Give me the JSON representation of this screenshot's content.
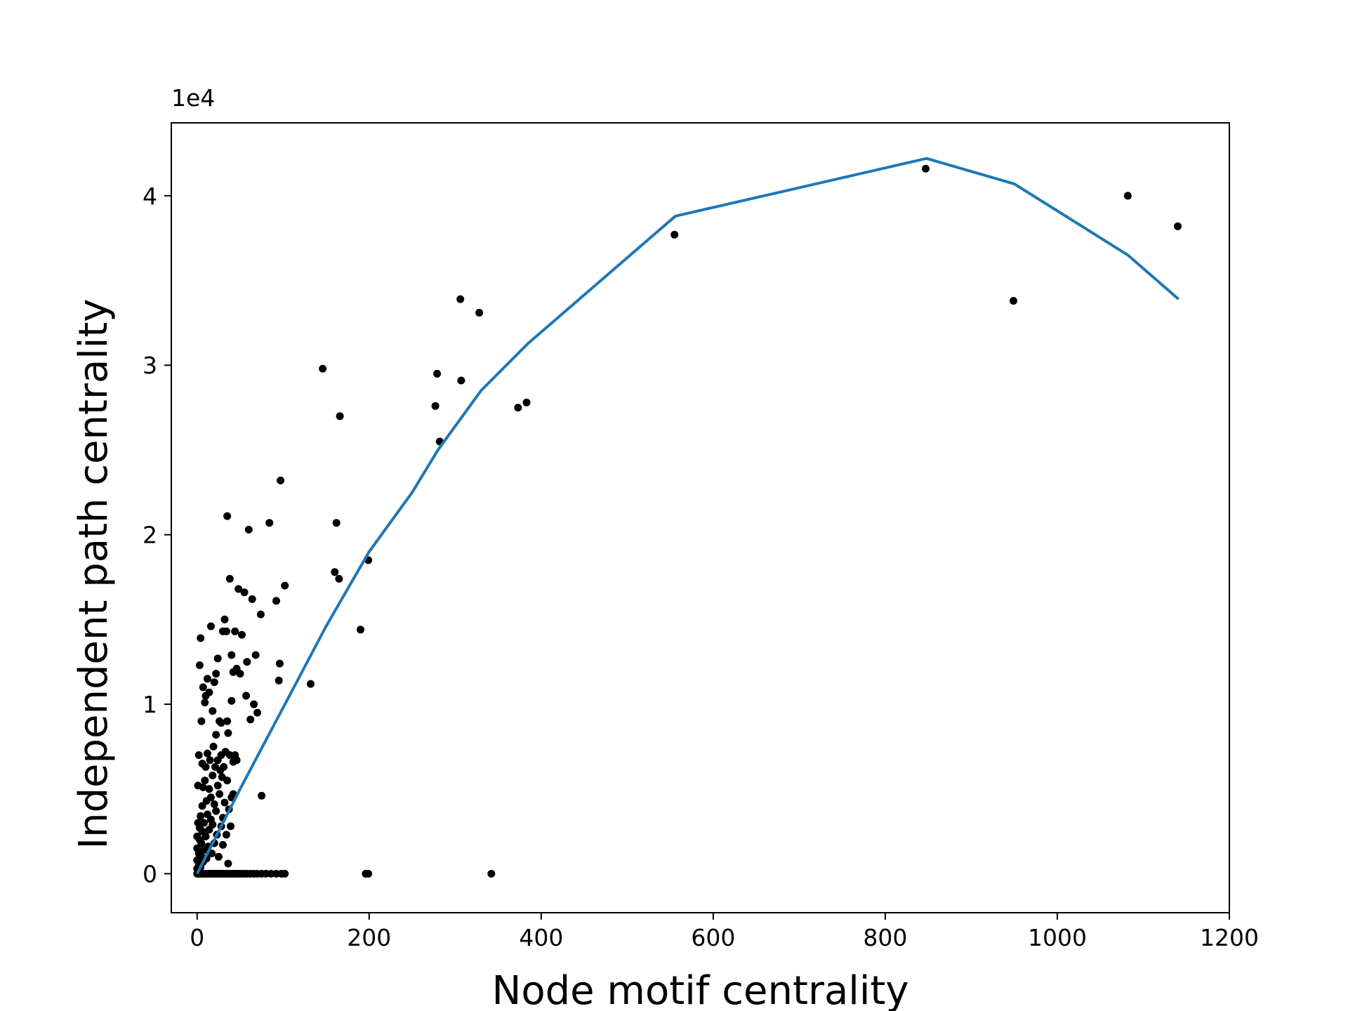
{
  "chart_data": {
    "type": "scatter",
    "title": "",
    "xlabel": "Node motif centrality",
    "ylabel": "Independent path centrality",
    "y_offset_label": "1e4",
    "y_scale_factor": 10000,
    "xlim": [
      -30,
      1200
    ],
    "ylim": [
      -2300,
      44300
    ],
    "x_ticks": [
      0,
      200,
      400,
      600,
      800,
      1000,
      1200
    ],
    "x_tick_labels": [
      "0",
      "200",
      "400",
      "600",
      "800",
      "1000",
      "1200"
    ],
    "y_ticks": [
      0,
      10000,
      20000,
      30000,
      40000
    ],
    "y_tick_labels": [
      "0",
      "1",
      "2",
      "3",
      "4"
    ],
    "grid": false,
    "colors": {
      "points": "#000000",
      "line": "#1f77b4"
    },
    "series": [
      {
        "kind": "scatter",
        "points": [
          [
            0,
            0
          ],
          [
            1,
            0
          ],
          [
            2,
            0
          ],
          [
            3,
            0
          ],
          [
            4,
            0
          ],
          [
            5,
            0
          ],
          [
            6,
            0
          ],
          [
            7,
            0
          ],
          [
            8,
            0
          ],
          [
            9,
            0
          ],
          [
            10,
            0
          ],
          [
            12,
            0
          ],
          [
            14,
            0
          ],
          [
            16,
            0
          ],
          [
            18,
            0
          ],
          [
            20,
            0
          ],
          [
            22,
            0
          ],
          [
            24,
            0
          ],
          [
            26,
            0
          ],
          [
            28,
            0
          ],
          [
            30,
            0
          ],
          [
            32,
            0
          ],
          [
            34,
            0
          ],
          [
            36,
            0
          ],
          [
            38,
            0
          ],
          [
            40,
            0
          ],
          [
            42,
            0
          ],
          [
            44,
            0
          ],
          [
            46,
            0
          ],
          [
            48,
            0
          ],
          [
            50,
            0
          ],
          [
            52,
            0
          ],
          [
            55,
            0
          ],
          [
            58,
            0
          ],
          [
            62,
            0
          ],
          [
            66,
            0
          ],
          [
            70,
            0
          ],
          [
            75,
            0
          ],
          [
            80,
            0
          ],
          [
            86,
            0
          ],
          [
            92,
            0
          ],
          [
            98,
            0
          ],
          [
            102,
            0
          ],
          [
            196,
            0
          ],
          [
            199,
            0
          ],
          [
            342,
            0
          ],
          [
            0,
            300
          ],
          [
            0,
            800
          ],
          [
            0,
            1500
          ],
          [
            0,
            2200
          ],
          [
            1,
            3000
          ],
          [
            2,
            600
          ],
          [
            2,
            1200
          ],
          [
            3,
            2000
          ],
          [
            3,
            2700
          ],
          [
            4,
            400
          ],
          [
            4,
            3400
          ],
          [
            5,
            1000
          ],
          [
            5,
            1800
          ],
          [
            6,
            2500
          ],
          [
            6,
            4000
          ],
          [
            7,
            700
          ],
          [
            7,
            5100
          ],
          [
            8,
            1400
          ],
          [
            8,
            3000
          ],
          [
            9,
            5500
          ],
          [
            10,
            2200
          ],
          [
            10,
            6300
          ],
          [
            11,
            900
          ],
          [
            11,
            4300
          ],
          [
            12,
            3500
          ],
          [
            12,
            7100
          ],
          [
            13,
            1600
          ],
          [
            14,
            5000
          ],
          [
            14,
            2600
          ],
          [
            15,
            6700
          ],
          [
            16,
            3200
          ],
          [
            16,
            4500
          ],
          [
            17,
            1200
          ],
          [
            18,
            5800
          ],
          [
            18,
            2900
          ],
          [
            19,
            7500
          ],
          [
            20,
            4100
          ],
          [
            20,
            1800
          ],
          [
            21,
            6300
          ],
          [
            22,
            3700
          ],
          [
            22,
            8200
          ],
          [
            23,
            2300
          ],
          [
            24,
            5200
          ],
          [
            24,
            6700
          ],
          [
            25,
            1000
          ],
          [
            26,
            4700
          ],
          [
            27,
            6100
          ],
          [
            28,
            2800
          ],
          [
            28,
            7000
          ],
          [
            29,
            5700
          ],
          [
            30,
            1700
          ],
          [
            30,
            3300
          ],
          [
            31,
            6300
          ],
          [
            32,
            4200
          ],
          [
            33,
            7200
          ],
          [
            34,
            2300
          ],
          [
            35,
            5500
          ],
          [
            35,
            9000
          ],
          [
            36,
            600
          ],
          [
            37,
            3800
          ],
          [
            38,
            7000
          ],
          [
            39,
            2800
          ],
          [
            40,
            4500
          ],
          [
            42,
            6600
          ],
          [
            44,
            7000
          ],
          [
            46,
            6700
          ],
          [
            1,
            5200
          ],
          [
            2,
            7000
          ],
          [
            3,
            12300
          ],
          [
            4,
            13900
          ],
          [
            5,
            9000
          ],
          [
            6,
            6500
          ],
          [
            7,
            11000
          ],
          [
            9,
            10100
          ],
          [
            10,
            10500
          ],
          [
            12,
            11500
          ],
          [
            14,
            10700
          ],
          [
            16,
            14600
          ],
          [
            18,
            9600
          ],
          [
            20,
            11300
          ],
          [
            22,
            11800
          ],
          [
            24,
            12700
          ],
          [
            26,
            9000
          ],
          [
            28,
            8900
          ],
          [
            30,
            14300
          ],
          [
            32,
            15000
          ],
          [
            34,
            14300
          ],
          [
            36,
            8300
          ],
          [
            38,
            17400
          ],
          [
            40,
            10200
          ],
          [
            40,
            12900
          ],
          [
            42,
            11900
          ],
          [
            44,
            14300
          ],
          [
            46,
            12100
          ],
          [
            48,
            16800
          ],
          [
            50,
            11800
          ],
          [
            52,
            14100
          ],
          [
            55,
            16600
          ],
          [
            57,
            10500
          ],
          [
            58,
            12500
          ],
          [
            60,
            20300
          ],
          [
            62,
            9100
          ],
          [
            64,
            16200
          ],
          [
            66,
            10000
          ],
          [
            68,
            12900
          ],
          [
            70,
            9500
          ],
          [
            74,
            15300
          ],
          [
            84,
            20700
          ],
          [
            92,
            16100
          ],
          [
            95,
            11400
          ],
          [
            96,
            12400
          ],
          [
            97,
            23200
          ],
          [
            102,
            17000
          ],
          [
            35,
            21100
          ],
          [
            42,
            4700
          ],
          [
            75,
            4600
          ],
          [
            132,
            11200
          ],
          [
            146,
            29800
          ],
          [
            160,
            17800
          ],
          [
            162,
            20700
          ],
          [
            165,
            17400
          ],
          [
            166,
            27000
          ],
          [
            190,
            14400
          ],
          [
            199,
            18500
          ],
          [
            277,
            27600
          ],
          [
            279,
            29500
          ],
          [
            282,
            25500
          ],
          [
            306,
            33900
          ],
          [
            307,
            29100
          ],
          [
            328,
            33100
          ],
          [
            373,
            27500
          ],
          [
            383,
            27800
          ],
          [
            555,
            37700
          ],
          [
            847,
            41600
          ],
          [
            949,
            33800
          ],
          [
            1082,
            40000
          ],
          [
            1140,
            38200
          ]
        ]
      },
      {
        "kind": "line",
        "points": [
          [
            0,
            0
          ],
          [
            50,
            5000
          ],
          [
            100,
            9800
          ],
          [
            150,
            14600
          ],
          [
            200,
            19000
          ],
          [
            250,
            22500
          ],
          [
            280,
            25000
          ],
          [
            330,
            28500
          ],
          [
            385,
            31300
          ],
          [
            556,
            38800
          ],
          [
            848,
            42200
          ],
          [
            950,
            40700
          ],
          [
            1082,
            36500
          ],
          [
            1141,
            33900
          ]
        ]
      }
    ]
  }
}
